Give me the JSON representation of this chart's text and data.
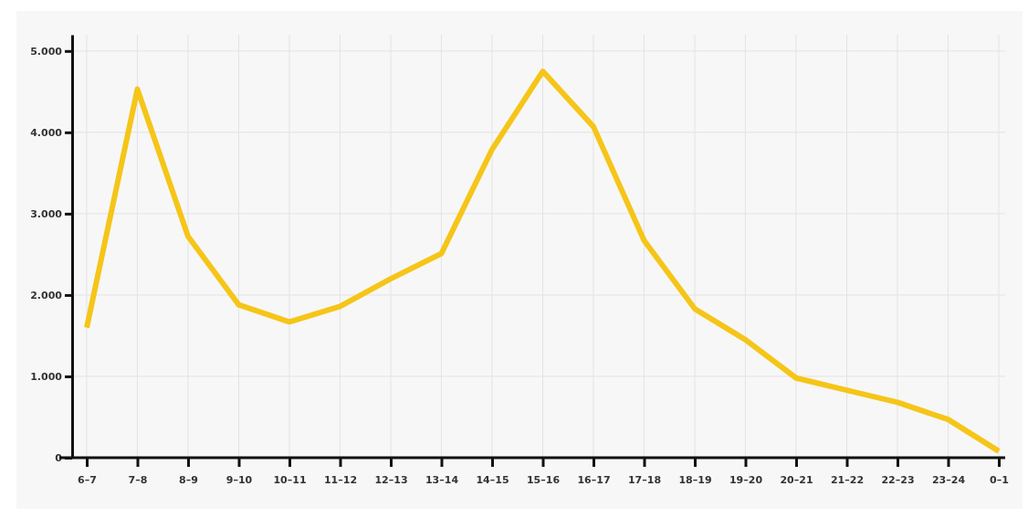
{
  "chart_data": {
    "type": "line",
    "categories": [
      "6–7",
      "7–8",
      "8–9",
      "9–10",
      "10–11",
      "11–12",
      "12–13",
      "13–14",
      "14–15",
      "15–16",
      "16–17",
      "17–18",
      "18–19",
      "19–20",
      "20–21",
      "21–22",
      "22–23",
      "23–24",
      "0–1"
    ],
    "series": [
      {
        "color": "#f5c518",
        "values": [
          1600,
          4530,
          2720,
          1880,
          1670,
          1860,
          2200,
          2510,
          3790,
          4750,
          4070,
          2670,
          1830,
          1450,
          980,
          830,
          680,
          470,
          80
        ]
      }
    ],
    "ylim": [
      0,
      5200
    ],
    "yticks": [
      0,
      {
        "value": 1000,
        "label": "1.000"
      },
      {
        "value": 2000,
        "label": "2.000"
      },
      {
        "value": 3000,
        "label": "3.000"
      },
      {
        "value": 4000,
        "label": "4.000"
      },
      {
        "value": 5000,
        "label": "5.000"
      }
    ],
    "grid": true,
    "marker": "none",
    "line_style": "solid"
  }
}
